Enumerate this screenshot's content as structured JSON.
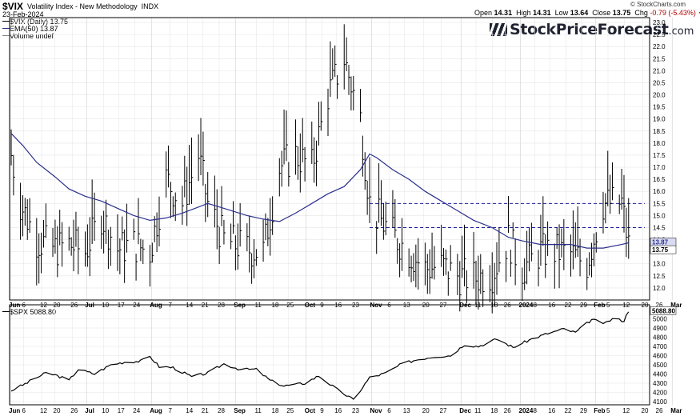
{
  "header": {
    "symbol": "$VIX",
    "name": "Volatility Index - New Methodology",
    "exchange": "INDX",
    "date": "23-Feb-2024",
    "open_label": "Open",
    "open": "14.31",
    "high_label": "High",
    "high": "14.31",
    "low_label": "Low",
    "low": "13.64",
    "close_label": "Close",
    "close": "13.75",
    "chg_label": "Chg",
    "chg": "-0.79 (-5.43%)",
    "down_arrow": "▼",
    "copyright": "© StockCharts.com",
    "brand_main": "StockPriceForecast",
    "brand_suffix": ".com"
  },
  "legend": {
    "vix_entry": "$VIX (Daily) 13.75",
    "ema_entry": "EMA(50) 13.87",
    "volume_entry": "Volume undef",
    "spx_entry": "$SPX 5088.80"
  },
  "colors": {
    "price": "#000000",
    "ema": "#2b2f8c",
    "hline": "#1c1f9c",
    "grid": "#e6e6e6"
  },
  "x_axis_labels": [
    "Jun",
    "6",
    "12",
    "20",
    "26",
    "Jul",
    "10",
    "17",
    "24",
    "Aug",
    "7",
    "14",
    "21",
    "28",
    "Sep",
    "11",
    "18",
    "25",
    "Oct",
    "9",
    "16",
    "23",
    "Nov",
    "6",
    "13",
    "20",
    "27",
    "Dec",
    "11",
    "18",
    "26",
    "2024",
    "8",
    "16",
    "22",
    "29",
    "Feb",
    "5",
    "12",
    "20",
    "26",
    "Mar"
  ],
  "chart_data": [
    {
      "type": "line",
      "title": "$VIX Volatility Index - New Methodology INDX (Daily)",
      "y_range": [
        11.5,
        23.2
      ],
      "y_ticks": [
        "12.0",
        "12.5",
        "13.0",
        "13.5",
        "14.0",
        "14.5",
        "15.0",
        "15.5",
        "16.0",
        "16.5",
        "17.0",
        "17.5",
        "18.0",
        "18.5",
        "19.0",
        "19.5",
        "20.0",
        "20.5",
        "21.0",
        "21.5",
        "22.0",
        "22.5",
        "23.0"
      ],
      "x_range": [
        "2023-06-01",
        "2024-02-23"
      ],
      "price_label": "13.75",
      "ema_label": "13.87",
      "series": [
        {
          "name": "EMA(50)",
          "points": [
            [
              "2023-06-01",
              18.4
            ],
            [
              "2023-06-06",
              17.9
            ],
            [
              "2023-06-12",
              17.2
            ],
            [
              "2023-06-20",
              16.6
            ],
            [
              "2023-06-26",
              16.1
            ],
            [
              "2023-07-03",
              15.8
            ],
            [
              "2023-07-10",
              15.6
            ],
            [
              "2023-07-17",
              15.3
            ],
            [
              "2023-07-24",
              15.0
            ],
            [
              "2023-07-31",
              14.8
            ],
            [
              "2023-08-07",
              14.9
            ],
            [
              "2023-08-14",
              15.1
            ],
            [
              "2023-08-21",
              15.35
            ],
            [
              "2023-08-25",
              15.5
            ],
            [
              "2023-09-01",
              15.3
            ],
            [
              "2023-09-11",
              15.0
            ],
            [
              "2023-09-18",
              14.85
            ],
            [
              "2023-09-25",
              14.75
            ],
            [
              "2023-10-02",
              15.1
            ],
            [
              "2023-10-09",
              15.5
            ],
            [
              "2023-10-16",
              15.9
            ],
            [
              "2023-10-23",
              16.2
            ],
            [
              "2023-10-30",
              16.9
            ],
            [
              "2023-11-03",
              17.55
            ],
            [
              "2023-11-06",
              17.4
            ],
            [
              "2023-11-13",
              16.9
            ],
            [
              "2023-11-20",
              16.5
            ],
            [
              "2023-11-27",
              16.0
            ],
            [
              "2023-12-04",
              15.6
            ],
            [
              "2023-12-11",
              15.2
            ],
            [
              "2023-12-18",
              14.8
            ],
            [
              "2023-12-26",
              14.5
            ],
            [
              "2024-01-02",
              14.1
            ],
            [
              "2024-01-08",
              13.95
            ],
            [
              "2024-01-16",
              13.8
            ],
            [
              "2024-01-22",
              13.8
            ],
            [
              "2024-01-29",
              13.8
            ],
            [
              "2024-02-05",
              13.65
            ],
            [
              "2024-02-12",
              13.65
            ],
            [
              "2024-02-20",
              13.8
            ],
            [
              "2024-02-23",
              13.87
            ]
          ]
        },
        {
          "name": "$VIX close (approx.)",
          "points": [
            [
              "2023-06-01",
              17.5
            ],
            [
              "2023-06-05",
              15.5
            ],
            [
              "2023-06-12",
              14.0
            ],
            [
              "2023-06-20",
              13.6
            ],
            [
              "2023-06-26",
              13.8
            ],
            [
              "2023-07-03",
              13.5
            ],
            [
              "2023-07-10",
              15.0
            ],
            [
              "2023-07-17",
              13.6
            ],
            [
              "2023-07-24",
              13.8
            ],
            [
              "2023-07-31",
              13.5
            ],
            [
              "2023-08-07",
              16.5
            ],
            [
              "2023-08-14",
              15.5
            ],
            [
              "2023-08-21",
              17.5
            ],
            [
              "2023-08-25",
              15.5
            ],
            [
              "2023-09-01",
              14.0
            ],
            [
              "2023-09-11",
              13.6
            ],
            [
              "2023-09-18",
              13.5
            ],
            [
              "2023-09-25",
              17.0
            ],
            [
              "2023-10-02",
              17.5
            ],
            [
              "2023-10-09",
              17.0
            ],
            [
              "2023-10-16",
              20.0
            ],
            [
              "2023-10-23",
              21.5
            ],
            [
              "2023-10-30",
              19.0
            ],
            [
              "2023-11-03",
              15.5
            ],
            [
              "2023-11-06",
              15.0
            ],
            [
              "2023-11-13",
              14.2
            ],
            [
              "2023-11-20",
              13.5
            ],
            [
              "2023-11-27",
              12.8
            ],
            [
              "2023-12-04",
              12.9
            ],
            [
              "2023-12-11",
              12.5
            ],
            [
              "2023-12-18",
              12.4
            ],
            [
              "2023-12-26",
              12.6
            ],
            [
              "2024-01-02",
              14.0
            ],
            [
              "2024-01-08",
              12.8
            ],
            [
              "2024-01-16",
              13.5
            ],
            [
              "2024-01-22",
              13.5
            ],
            [
              "2024-01-29",
              13.4
            ],
            [
              "2024-02-05",
              13.0
            ],
            [
              "2024-02-12",
              15.5
            ],
            [
              "2024-02-20",
              15.5
            ],
            [
              "2024-02-23",
              13.75
            ]
          ]
        }
      ],
      "hlines": [
        15.5,
        14.5
      ]
    },
    {
      "type": "line",
      "title": "$SPX",
      "y_range": [
        4100,
        5100
      ],
      "y_ticks": [
        "4100",
        "4200",
        "4300",
        "4400",
        "4500",
        "4600",
        "4700",
        "4800",
        "4900",
        "5000"
      ],
      "price_label": "5088.80",
      "series": [
        {
          "name": "$SPX",
          "points": [
            [
              "2023-06-01",
              4220
            ],
            [
              "2023-06-06",
              4280
            ],
            [
              "2023-06-12",
              4360
            ],
            [
              "2023-06-16",
              4410
            ],
            [
              "2023-06-20",
              4390
            ],
            [
              "2023-06-26",
              4330
            ],
            [
              "2023-06-30",
              4450
            ],
            [
              "2023-07-07",
              4400
            ],
            [
              "2023-07-14",
              4500
            ],
            [
              "2023-07-20",
              4530
            ],
            [
              "2023-07-27",
              4540
            ],
            [
              "2023-07-31",
              4590
            ],
            [
              "2023-08-04",
              4480
            ],
            [
              "2023-08-10",
              4470
            ],
            [
              "2023-08-18",
              4370
            ],
            [
              "2023-08-25",
              4410
            ],
            [
              "2023-09-01",
              4510
            ],
            [
              "2023-09-08",
              4450
            ],
            [
              "2023-09-15",
              4450
            ],
            [
              "2023-09-21",
              4330
            ],
            [
              "2023-09-27",
              4270
            ],
            [
              "2023-10-06",
              4300
            ],
            [
              "2023-10-12",
              4380
            ],
            [
              "2023-10-20",
              4230
            ],
            [
              "2023-10-27",
              4120
            ],
            [
              "2023-11-03",
              4360
            ],
            [
              "2023-11-10",
              4410
            ],
            [
              "2023-11-17",
              4510
            ],
            [
              "2023-11-24",
              4560
            ],
            [
              "2023-12-01",
              4590
            ],
            [
              "2023-12-08",
              4600
            ],
            [
              "2023-12-14",
              4720
            ],
            [
              "2023-12-20",
              4700
            ],
            [
              "2023-12-28",
              4780
            ],
            [
              "2024-01-04",
              4690
            ],
            [
              "2024-01-12",
              4780
            ],
            [
              "2024-01-19",
              4840
            ],
            [
              "2024-01-26",
              4890
            ],
            [
              "2024-01-31",
              4850
            ],
            [
              "2024-02-07",
              4990
            ],
            [
              "2024-02-13",
              4950
            ],
            [
              "2024-02-16",
              5000
            ],
            [
              "2024-02-21",
              4980
            ],
            [
              "2024-02-23",
              5089
            ]
          ]
        }
      ]
    }
  ]
}
